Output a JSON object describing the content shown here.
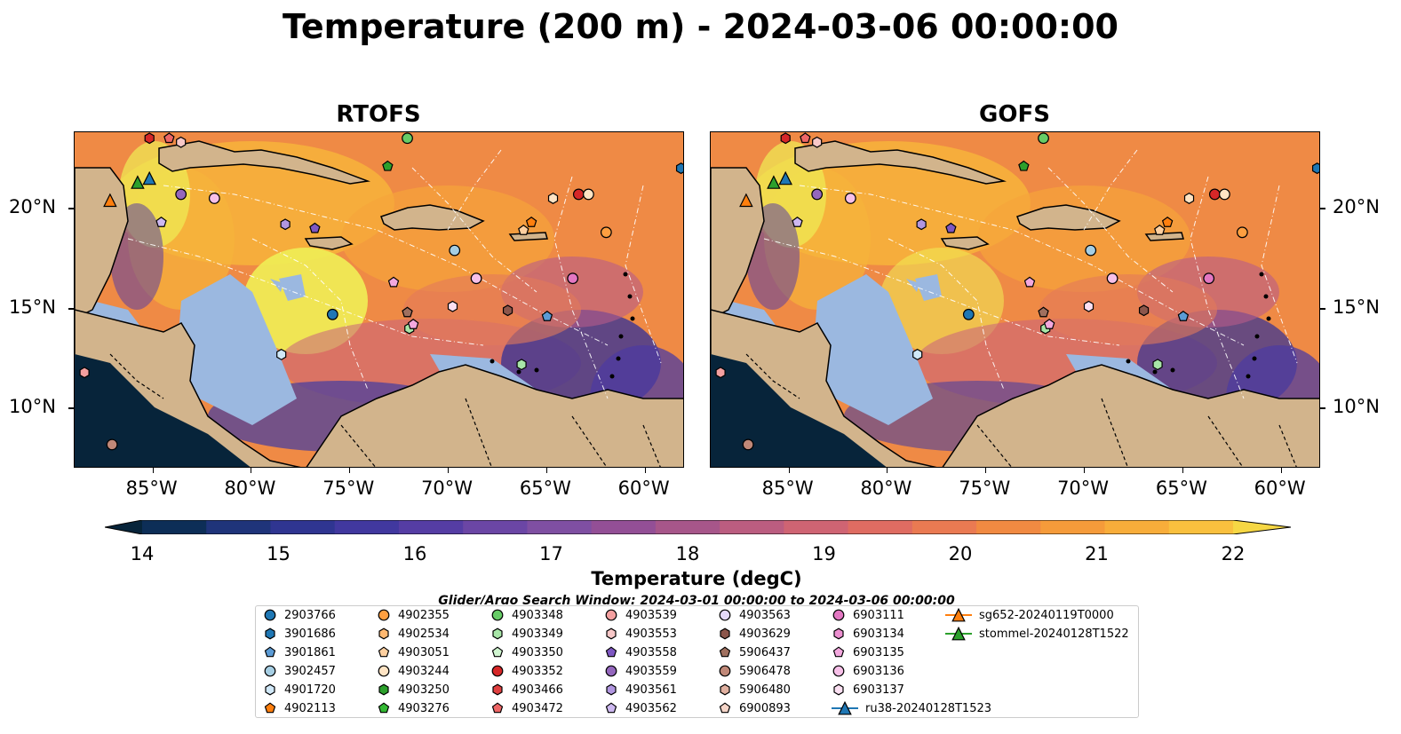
{
  "title": "Temperature (200 m) - 2024-03-06 00:00:00",
  "panels": [
    {
      "name": "RTOFS"
    },
    {
      "name": "GOFS"
    }
  ],
  "lon_labels": [
    "85°W",
    "80°W",
    "75°W",
    "70°W",
    "65°W",
    "60°W"
  ],
  "lat_labels": [
    "20°N",
    "15°N",
    "10°N"
  ],
  "colorbar": {
    "ticks": [
      "14",
      "15",
      "16",
      "17",
      "18",
      "19",
      "20",
      "21",
      "22"
    ],
    "label": "Temperature (degC)",
    "min": 14,
    "max": 22
  },
  "search_window": "Glider/Argo Search Window: 2024-03-01 00:00:00 to 2024-03-06 00:00:00",
  "legend": [
    {
      "label": "2903766",
      "color": "#1f77b4",
      "marker": "circle"
    },
    {
      "label": "3901686",
      "color": "#1f77b4",
      "marker": "hexagon"
    },
    {
      "label": "3901861",
      "color": "#5b9bd5",
      "marker": "pentagon"
    },
    {
      "label": "3902457",
      "color": "#a6cee3",
      "marker": "circle"
    },
    {
      "label": "4901720",
      "color": "#d0e8f8",
      "marker": "hexagon"
    },
    {
      "label": "4902113",
      "color": "#ff7f0e",
      "marker": "pentagon"
    },
    {
      "label": "4902355",
      "color": "#ff9f40",
      "marker": "circle"
    },
    {
      "label": "4902534",
      "color": "#ffb870",
      "marker": "hexagon"
    },
    {
      "label": "4903051",
      "color": "#ffd0a0",
      "marker": "pentagon"
    },
    {
      "label": "4903244",
      "color": "#ffe4c4",
      "marker": "circle"
    },
    {
      "label": "4903250",
      "color": "#2ca02c",
      "marker": "hexagon"
    },
    {
      "label": "4903276",
      "color": "#33b833",
      "marker": "pentagon"
    },
    {
      "label": "4903348",
      "color": "#66cc66",
      "marker": "circle"
    },
    {
      "label": "4903349",
      "color": "#a8e6a8",
      "marker": "hexagon"
    },
    {
      "label": "4903350",
      "color": "#d0f5d0",
      "marker": "pentagon"
    },
    {
      "label": "4903352",
      "color": "#d62728",
      "marker": "circle"
    },
    {
      "label": "4903466",
      "color": "#e04040",
      "marker": "hexagon"
    },
    {
      "label": "4903472",
      "color": "#ee6666",
      "marker": "pentagon"
    },
    {
      "label": "4903539",
      "color": "#f4a0a0",
      "marker": "circle"
    },
    {
      "label": "4903553",
      "color": "#f8c8c8",
      "marker": "hexagon"
    },
    {
      "label": "4903558",
      "color": "#7e57c2",
      "marker": "pentagon"
    },
    {
      "label": "4903559",
      "color": "#9467bd",
      "marker": "circle"
    },
    {
      "label": "4903561",
      "color": "#b196e0",
      "marker": "hexagon"
    },
    {
      "label": "4903562",
      "color": "#cdb8f0",
      "marker": "pentagon"
    },
    {
      "label": "4903563",
      "color": "#e4d8f8",
      "marker": "circle"
    },
    {
      "label": "4903629",
      "color": "#8c564b",
      "marker": "hexagon"
    },
    {
      "label": "5906437",
      "color": "#a0705f",
      "marker": "pentagon"
    },
    {
      "label": "5906478",
      "color": "#c08878",
      "marker": "circle"
    },
    {
      "label": "5906480",
      "color": "#e0b0a0",
      "marker": "hexagon"
    },
    {
      "label": "6900893",
      "color": "#f5d5c8",
      "marker": "pentagon"
    },
    {
      "label": "6903111",
      "color": "#e377c2",
      "marker": "circle"
    },
    {
      "label": "6903134",
      "color": "#ec8fd0",
      "marker": "hexagon"
    },
    {
      "label": "6903135",
      "color": "#f3a8de",
      "marker": "pentagon"
    },
    {
      "label": "6903136",
      "color": "#f7c0e8",
      "marker": "circle"
    },
    {
      "label": "6903137",
      "color": "#fbe0f2",
      "marker": "hexagon"
    },
    {
      "label": "ru38-20240128T1523",
      "color": "#1f77b4",
      "marker": "triangle"
    },
    {
      "label": "sg652-20240119T0000",
      "color": "#ff7f0e",
      "marker": "triangle"
    },
    {
      "label": "stommel-20240128T1522",
      "color": "#2ca02c",
      "marker": "triangle"
    }
  ]
}
